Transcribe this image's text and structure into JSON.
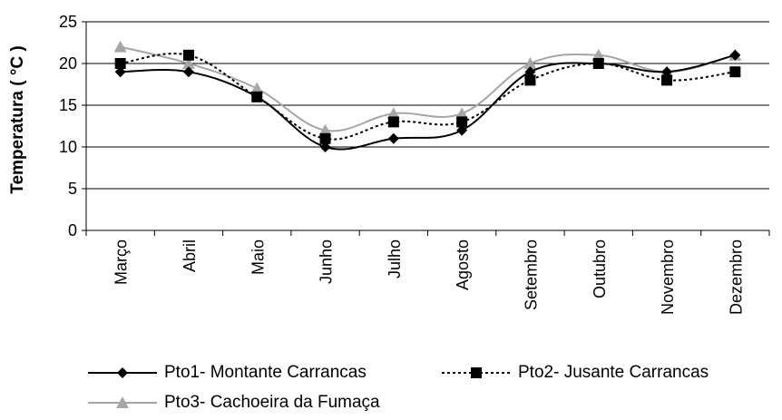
{
  "chart_data": {
    "type": "line",
    "ylabel": "Temperatura (  °C )",
    "xlabel": "",
    "ylim": [
      0,
      25
    ],
    "yticks": [
      "0",
      "5",
      "10",
      "15",
      "20",
      "25"
    ],
    "categories": [
      "Março",
      "Abril",
      "Maio",
      "Junho",
      "Julho",
      "Agosto",
      "Setembro",
      "Outubro",
      "Novembro",
      "Dezembro"
    ],
    "grid": "horizontal",
    "legend_position": "bottom",
    "series": [
      {
        "name": "Pto1- Montante Carrancas",
        "color": "#000000",
        "marker": "diamond",
        "line": "solid",
        "values": [
          19,
          19,
          16,
          10,
          11,
          12,
          19,
          20,
          19,
          21
        ]
      },
      {
        "name": "Pto2- Jusante Carrancas",
        "color": "#000000",
        "marker": "square",
        "line": "dotted",
        "values": [
          20,
          21,
          16,
          11,
          13,
          13,
          18,
          20,
          18,
          19
        ]
      },
      {
        "name": "Pto3- Cachoeira da Fumaça",
        "color": "#a6a6a6",
        "marker": "triangle",
        "line": "solid",
        "values": [
          22,
          20,
          17,
          12,
          14,
          14,
          20,
          21,
          19,
          21
        ]
      }
    ]
  }
}
